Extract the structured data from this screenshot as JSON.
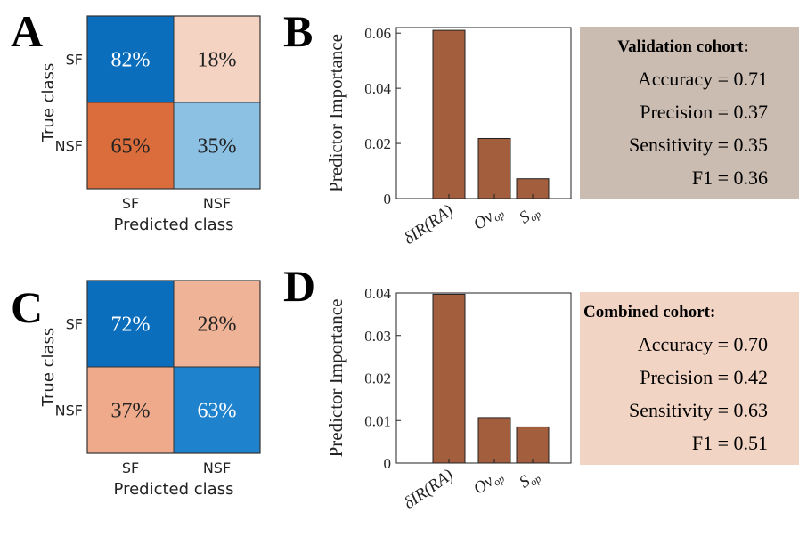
{
  "panels": {
    "A": {
      "letter": "A",
      "rows": [
        "SF",
        "NSF"
      ],
      "cols": [
        "SF",
        "NSF"
      ],
      "cells": [
        [
          "82%",
          "18%"
        ],
        [
          "65%",
          "35%"
        ]
      ],
      "colors": [
        [
          "#0a6ebd",
          "#f4d3c3"
        ],
        [
          "#db6d3c",
          "#8dc1e4"
        ]
      ],
      "text_colors": [
        [
          "#ffffff",
          "#222222"
        ],
        [
          "#222222",
          "#222222"
        ]
      ],
      "ylabel": "True class",
      "xlabel": "Predicted class"
    },
    "C": {
      "letter": "C",
      "rows": [
        "SF",
        "NSF"
      ],
      "cols": [
        "SF",
        "NSF"
      ],
      "cells": [
        [
          "72%",
          "28%"
        ],
        [
          "37%",
          "63%"
        ]
      ],
      "colors": [
        [
          "#0a6ebd",
          "#efb397"
        ],
        [
          "#eeaa8b",
          "#1f82cd"
        ]
      ],
      "text_colors": [
        [
          "#ffffff",
          "#222222"
        ],
        [
          "#222222",
          "#ffffff"
        ]
      ],
      "ylabel": "True class",
      "xlabel": "Predicted class"
    }
  },
  "chart_data": [
    {
      "type": "bar",
      "letter": "B",
      "categories": [
        "δIR(RA)",
        "Ov_op",
        "S_op"
      ],
      "values": [
        0.061,
        0.0218,
        0.0072
      ],
      "ylabel": "Predictor Importance",
      "ylim": [
        0,
        0.062
      ],
      "yticks": [
        "0",
        "0.02",
        "0.04",
        "0.06"
      ],
      "ytick_values": [
        0,
        0.02,
        0.04,
        0.06
      ],
      "bar_color": "#a35e3d"
    },
    {
      "type": "bar",
      "letter": "D",
      "categories": [
        "δIR(RA)",
        "Ov_op",
        "S_op"
      ],
      "values": [
        0.0397,
        0.0107,
        0.0085
      ],
      "ylabel": "Predictor Importance",
      "ylim": [
        0,
        0.04
      ],
      "yticks": [
        "0",
        "0.01",
        "0.02",
        "0.03",
        "0.04"
      ],
      "ytick_values": [
        0,
        0.01,
        0.02,
        0.03,
        0.04
      ],
      "bar_color": "#a35e3d"
    }
  ],
  "metrics": [
    {
      "title": "Validation cohort:",
      "bg": "#cbbcb1",
      "lines": [
        "Accuracy = 0.71",
        "Precision = 0.37",
        "Sensitivity = 0.35",
        "F1 = 0.36"
      ]
    },
    {
      "title": "Combined cohort:",
      "bg": "#f2d4c4",
      "lines": [
        "Accuracy = 0.70",
        "Precision = 0.42",
        "Sensitivity = 0.63",
        "F1 = 0.51"
      ]
    }
  ]
}
